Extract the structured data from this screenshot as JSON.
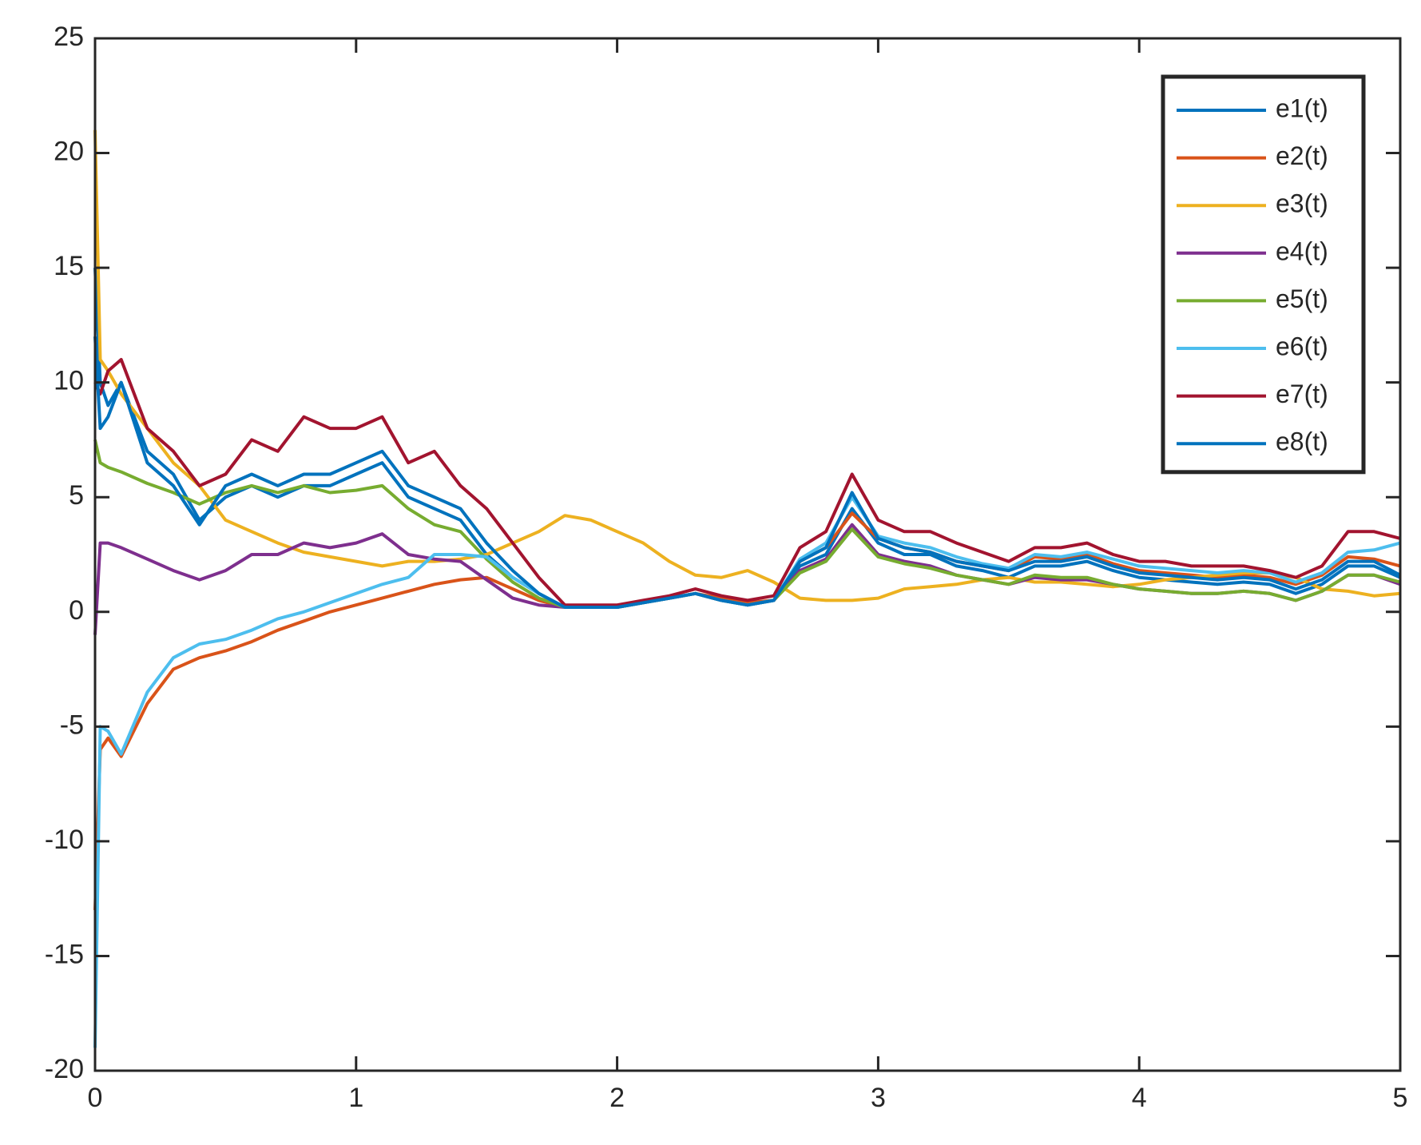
{
  "chart_data": {
    "type": "line",
    "x": [
      0,
      0.02,
      0.05,
      0.1,
      0.2,
      0.3,
      0.4,
      0.5,
      0.6,
      0.7,
      0.8,
      0.9,
      1.0,
      1.1,
      1.2,
      1.3,
      1.4,
      1.5,
      1.6,
      1.7,
      1.8,
      1.9,
      2.0,
      2.1,
      2.2,
      2.3,
      2.4,
      2.5,
      2.6,
      2.7,
      2.8,
      2.9,
      3.0,
      3.1,
      3.2,
      3.3,
      3.4,
      3.5,
      3.6,
      3.7,
      3.8,
      3.9,
      4.0,
      4.1,
      4.2,
      4.3,
      4.4,
      4.5,
      4.6,
      4.7,
      4.8,
      4.9,
      5.0
    ],
    "series": [
      {
        "name": "e1(t)",
        "color": "#0072BD",
        "values": [
          15,
          10,
          9,
          10,
          7,
          6,
          4,
          5,
          5.5,
          5,
          5.5,
          5.5,
          6,
          6.5,
          5,
          4.5,
          4,
          2.5,
          1.5,
          0.8,
          0.2,
          0.2,
          0.2,
          0.4,
          0.6,
          0.8,
          0.5,
          0.3,
          0.5,
          2,
          2.5,
          4.5,
          3,
          2.5,
          2.5,
          2,
          1.8,
          1.5,
          2,
          2,
          2.2,
          1.8,
          1.5,
          1.4,
          1.3,
          1.2,
          1.3,
          1.2,
          0.8,
          1.2,
          2,
          2,
          1.5
        ]
      },
      {
        "name": "e2(t)",
        "color": "#D95319",
        "values": [
          -13,
          -6,
          -5.5,
          -6.3,
          -4,
          -2.5,
          -2,
          -1.7,
          -1.3,
          -0.8,
          -0.4,
          0,
          0.3,
          0.6,
          0.9,
          1.2,
          1.4,
          1.5,
          1.0,
          0.5,
          0.2,
          0.2,
          0.2,
          0.4,
          0.6,
          0.8,
          0.6,
          0.4,
          0.5,
          2.2,
          2.8,
          4.3,
          3.2,
          2.8,
          2.6,
          2.2,
          2,
          1.8,
          2.4,
          2.3,
          2.5,
          2.1,
          1.8,
          1.7,
          1.6,
          1.5,
          1.6,
          1.5,
          1.2,
          1.6,
          2.4,
          2.3,
          2.0
        ]
      },
      {
        "name": "e3(t)",
        "color": "#EDB120",
        "values": [
          21,
          11,
          10.5,
          9.5,
          8,
          6.5,
          5.5,
          4,
          3.5,
          3,
          2.6,
          2.4,
          2.2,
          2,
          2.2,
          2.2,
          2.3,
          2.5,
          3,
          3.5,
          4.2,
          4.0,
          3.5,
          3,
          2.2,
          1.6,
          1.5,
          1.8,
          1.3,
          0.6,
          0.5,
          0.5,
          0.6,
          1.0,
          1.1,
          1.2,
          1.4,
          1.5,
          1.3,
          1.3,
          1.2,
          1.1,
          1.2,
          1.4,
          1.5,
          1.6,
          1.7,
          1.7,
          1.5,
          1.0,
          0.9,
          0.7,
          0.8
        ]
      },
      {
        "name": "e4(t)",
        "color": "#7E2F8E",
        "values": [
          -1,
          3,
          3,
          2.8,
          2.3,
          1.8,
          1.4,
          1.8,
          2.5,
          2.5,
          3,
          2.8,
          3.0,
          3.4,
          2.5,
          2.3,
          2.2,
          1.4,
          0.6,
          0.3,
          0.2,
          0.2,
          0.2,
          0.4,
          0.6,
          0.8,
          0.5,
          0.3,
          0.5,
          1.8,
          2.3,
          3.8,
          2.5,
          2.2,
          2,
          1.6,
          1.4,
          1.2,
          1.5,
          1.4,
          1.4,
          1.2,
          1.0,
          0.9,
          0.8,
          0.8,
          0.9,
          0.8,
          0.5,
          0.9,
          1.6,
          1.6,
          1.2
        ]
      },
      {
        "name": "e5(t)",
        "color": "#77AC30",
        "values": [
          7.5,
          6.5,
          6.3,
          6.1,
          5.6,
          5.2,
          4.7,
          5.2,
          5.5,
          5.2,
          5.5,
          5.2,
          5.3,
          5.5,
          4.5,
          3.8,
          3.5,
          2.3,
          1.3,
          0.6,
          0.2,
          0.2,
          0.2,
          0.4,
          0.6,
          0.8,
          0.5,
          0.3,
          0.5,
          1.7,
          2.2,
          3.6,
          2.4,
          2.1,
          1.9,
          1.6,
          1.4,
          1.2,
          1.6,
          1.5,
          1.5,
          1.2,
          1.0,
          0.9,
          0.8,
          0.8,
          0.9,
          0.8,
          0.5,
          0.9,
          1.6,
          1.6,
          1.3
        ]
      },
      {
        "name": "e6(t)",
        "color": "#4DBEEE",
        "values": [
          -19,
          -5,
          -5.2,
          -6.2,
          -3.5,
          -2,
          -1.4,
          -1.2,
          -0.8,
          -0.3,
          0,
          0.4,
          0.8,
          1.2,
          1.5,
          2.5,
          2.5,
          2.4,
          1.5,
          0.8,
          0.2,
          0.2,
          0.2,
          0.4,
          0.6,
          0.8,
          0.5,
          0.3,
          0.5,
          2.3,
          3,
          5,
          3.3,
          3,
          2.8,
          2.4,
          2.1,
          1.9,
          2.5,
          2.4,
          2.6,
          2.3,
          2,
          1.9,
          1.8,
          1.7,
          1.8,
          1.7,
          1.3,
          1.7,
          2.6,
          2.7,
          3.0
        ]
      },
      {
        "name": "e7(t)",
        "color": "#A2142F",
        "values": [
          10,
          9.5,
          10.5,
          11,
          8,
          7,
          5.5,
          6,
          7.5,
          7,
          8.5,
          8,
          8,
          8.5,
          6.5,
          7,
          5.5,
          4.5,
          3,
          1.5,
          0.3,
          0.3,
          0.3,
          0.5,
          0.7,
          1,
          0.7,
          0.5,
          0.7,
          2.8,
          3.5,
          6,
          4,
          3.5,
          3.5,
          3,
          2.6,
          2.2,
          2.8,
          2.8,
          3,
          2.5,
          2.2,
          2.2,
          2.0,
          2.0,
          2.0,
          1.8,
          1.5,
          2.0,
          3.5,
          3.5,
          3.2
        ]
      },
      {
        "name": "e8(t)",
        "color": "#0072BD",
        "values": [
          12,
          8,
          8.5,
          10,
          6.5,
          5.5,
          3.8,
          5.5,
          6,
          5.5,
          6,
          6,
          6.5,
          7,
          5.5,
          5,
          4.5,
          3,
          1.8,
          0.8,
          0.2,
          0.2,
          0.2,
          0.4,
          0.6,
          0.8,
          0.5,
          0.3,
          0.5,
          2.2,
          2.8,
          5.2,
          3.2,
          2.8,
          2.6,
          2.2,
          2,
          1.8,
          2.2,
          2.2,
          2.4,
          2,
          1.7,
          1.6,
          1.5,
          1.4,
          1.5,
          1.4,
          1,
          1.4,
          2.2,
          2.2,
          1.6
        ]
      }
    ],
    "xlim": [
      0,
      5
    ],
    "xticks": [
      0,
      1,
      2,
      3,
      4,
      5
    ],
    "ylim": [
      -20,
      25
    ],
    "yticks": [
      -20,
      -15,
      -10,
      -5,
      0,
      5,
      10,
      15,
      20,
      25
    ],
    "legend": "upper right"
  }
}
